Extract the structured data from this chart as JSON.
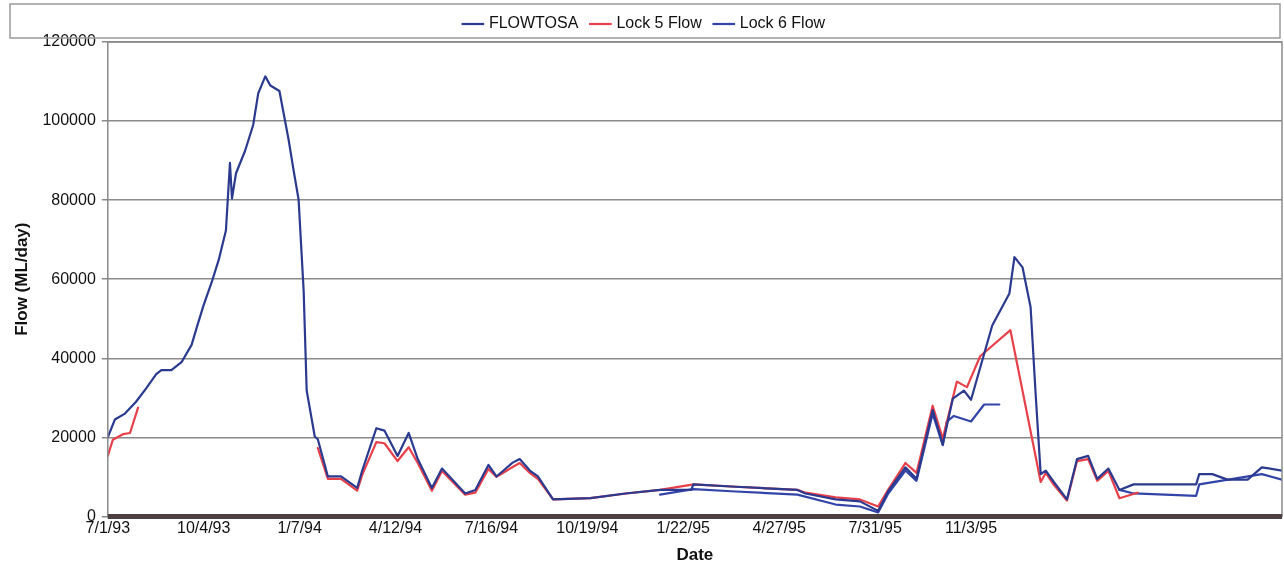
{
  "chart_data": {
    "type": "line",
    "xlabel": "Date",
    "ylabel": "Flow (ML/day)",
    "xlim": [
      "1993-07-01",
      "1996-09-06"
    ],
    "ylim": [
      0,
      120000
    ],
    "yticks": [
      0,
      20000,
      40000,
      60000,
      80000,
      100000,
      120000
    ],
    "xticks": [
      {
        "value": "1993-07-01",
        "label": "7/1/93"
      },
      {
        "value": "1993-10-04",
        "label": "10/4/93"
      },
      {
        "value": "1994-01-07",
        "label": "1/7/94"
      },
      {
        "value": "1994-04-12",
        "label": "4/12/94"
      },
      {
        "value": "1994-07-16",
        "label": "7/16/94"
      },
      {
        "value": "1994-10-19",
        "label": "10/19/94"
      },
      {
        "value": "1995-01-22",
        "label": "1/22/95"
      },
      {
        "value": "1995-04-27",
        "label": "4/27/95"
      },
      {
        "value": "1995-07-31",
        "label": "7/31/95"
      },
      {
        "value": "1995-11-03",
        "label": "11/3/95"
      }
    ],
    "grid": "y",
    "legend": "top",
    "marker": "none",
    "line_style": "solid",
    "series": [
      {
        "name": "FLOWTOSA",
        "color": "#2b3a8f",
        "x": [
          "1993-07-01",
          "1993-07-08",
          "1993-07-18",
          "1993-07-29",
          "1993-08-08",
          "1993-08-18",
          "1993-08-23",
          "1993-09-02",
          "1993-09-12",
          "1993-09-22",
          "1993-09-27",
          "1993-10-04",
          "1993-10-12",
          "1993-10-19",
          "1993-10-26",
          "1993-10-30",
          "1993-11-01",
          "1993-11-05",
          "1993-11-14",
          "1993-11-22",
          "1993-11-27",
          "1993-12-04",
          "1993-12-09",
          "1993-12-18",
          "1993-12-27",
          "1994-01-01",
          "1994-01-06",
          "1994-01-11",
          "1994-01-14",
          "1994-01-22",
          "1994-01-25",
          "1994-02-04",
          "1994-02-17",
          "1994-03-05",
          "1994-03-10",
          "1994-03-24",
          "1994-04-01",
          "1994-04-14",
          "1994-04-25",
          "1994-05-04",
          "1994-05-18",
          "1994-05-28",
          "1994-06-20",
          "1994-06-30",
          "1994-07-13",
          "1994-07-21",
          "1994-08-06",
          "1994-08-13",
          "1994-08-23",
          "1994-08-31",
          "1994-09-15",
          "1994-10-22",
          "1994-11-26",
          "1994-12-30",
          "1995-01-30",
          "1995-02-01",
          "1995-03-15",
          "1995-05-15",
          "1995-05-23",
          "1995-06-22",
          "1995-07-16",
          "1995-08-03",
          "1995-08-13",
          "1995-08-30",
          "1995-09-10",
          "1995-09-26",
          "1995-10-06",
          "1995-10-16",
          "1995-10-27",
          "1995-11-03",
          "1995-11-24",
          "1995-12-11",
          "1995-12-16",
          "1995-12-24",
          "1996-01-01",
          "1996-01-06",
          "1996-01-11",
          "1996-01-16",
          "1996-01-24",
          "1996-02-06",
          "1996-02-16",
          "1996-02-27",
          "1996-03-07",
          "1996-03-18",
          "1996-03-29",
          "1996-04-12",
          "1996-06-13",
          "1996-06-16",
          "1996-06-29",
          "1996-07-14",
          "1996-08-03",
          "1996-08-17",
          "1996-09-06"
        ],
        "values": [
          20000,
          24500,
          26000,
          29000,
          32400,
          36000,
          37000,
          37000,
          39000,
          43400,
          47700,
          53500,
          59300,
          65000,
          72300,
          89400,
          80400,
          86800,
          92500,
          99000,
          107000,
          111300,
          109000,
          107600,
          95400,
          87600,
          80100,
          57000,
          31800,
          20200,
          19500,
          10100,
          10100,
          7200,
          11600,
          22300,
          21700,
          15300,
          21100,
          14500,
          7200,
          12100,
          5800,
          6700,
          13000,
          10100,
          13600,
          14500,
          11600,
          10100,
          4300,
          4600,
          5800,
          6700,
          6700,
          8100,
          7500,
          6700,
          5800,
          4300,
          3800,
          1400,
          6400,
          12400,
          9500,
          26900,
          18200,
          29800,
          31800,
          29500,
          48300,
          56400,
          65600,
          63000,
          52900,
          30900,
          10700,
          11600,
          8700,
          4300,
          14500,
          15300,
          9500,
          12100,
          6700,
          8100,
          8100,
          10700,
          10700,
          9300,
          9300,
          12400,
          11600
        ]
      },
      {
        "name": "Lock 5 Flow",
        "color": "#e8404a",
        "x": [
          "1993-07-01",
          "1993-07-06",
          "1993-07-16",
          "1993-07-23",
          "1993-07-31",
          "1993-10-01",
          "1994-01-25",
          "1994-02-04",
          "1994-02-17",
          "1994-03-05",
          "1994-03-10",
          "1994-03-24",
          "1994-04-01",
          "1994-04-14",
          "1994-04-25",
          "1994-05-04",
          "1994-05-18",
          "1994-05-28",
          "1994-06-20",
          "1994-06-30",
          "1994-07-13",
          "1994-07-21",
          "1994-08-06",
          "1994-08-13",
          "1994-08-23",
          "1994-08-31",
          "1994-09-15",
          "1994-10-22",
          "1994-11-26",
          "1994-12-30",
          "1995-02-01",
          "1995-03-15",
          "1995-05-15",
          "1995-05-23",
          "1995-06-22",
          "1995-07-16",
          "1995-08-03",
          "1995-08-13",
          "1995-08-30",
          "1995-09-10",
          "1995-09-26",
          "1995-10-06",
          "1995-10-20",
          "1995-10-30",
          "1995-11-12",
          "1995-12-12",
          "1996-01-11",
          "1996-01-16",
          "1996-01-24",
          "1996-02-06",
          "1996-02-16",
          "1996-02-27",
          "1996-03-07",
          "1996-03-18",
          "1996-03-29",
          "1996-04-16"
        ],
        "values": [
          15300,
          19400,
          20800,
          21100,
          27500,
          null,
          17300,
          9500,
          9500,
          6500,
          10500,
          18800,
          18500,
          14000,
          17500,
          13500,
          6500,
          11500,
          5500,
          6000,
          12000,
          10000,
          12500,
          13500,
          11000,
          9500,
          4300,
          4600,
          5800,
          6700,
          8100,
          7500,
          6700,
          6000,
          4800,
          4300,
          2500,
          6800,
          13500,
          11000,
          28000,
          19700,
          34100,
          32700,
          40500,
          47100,
          8700,
          11000,
          8000,
          4000,
          14000,
          14500,
          9000,
          11500,
          4600,
          6000
        ]
      },
      {
        "name": "Lock 6 Flow",
        "color": "#3344a8",
        "x": [
          "1994-12-30",
          "1995-02-01",
          "1995-03-15",
          "1995-05-15",
          "1995-06-22",
          "1995-07-16",
          "1995-08-03",
          "1995-08-13",
          "1995-08-30",
          "1995-09-10",
          "1995-09-26",
          "1995-10-06",
          "1995-10-10",
          "1995-10-17",
          "1995-11-03",
          "1995-11-16",
          "1995-12-01",
          "1996-02-01",
          "1996-03-29",
          "1996-04-12",
          "1996-06-13",
          "1996-06-16",
          "1996-08-17",
          "1996-09-06"
        ],
        "values": [
          5500,
          6900,
          6300,
          5500,
          3000,
          2500,
          1000,
          5800,
          11600,
          9000,
          26000,
          18000,
          24000,
          25400,
          24000,
          28300,
          28300,
          null,
          6700,
          5800,
          5200,
          8100,
          10700,
          9300
        ]
      }
    ]
  }
}
